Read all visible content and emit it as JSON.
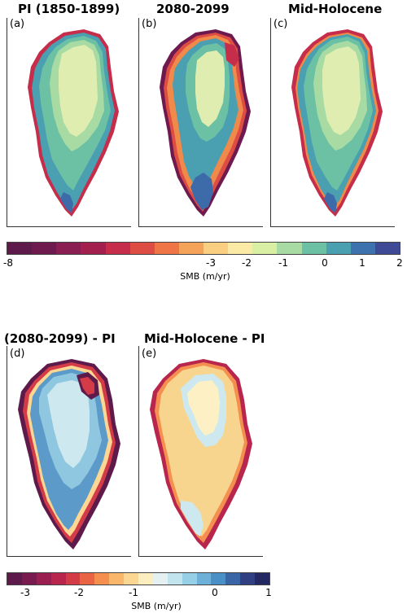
{
  "top_panels": [
    {
      "title": "PI (1850-1899)",
      "letter": "(a)"
    },
    {
      "title": "2080-2099",
      "letter": "(b)"
    },
    {
      "title": "Mid-Holocene",
      "letter": "(c)"
    }
  ],
  "bottom_panels": [
    {
      "title": "(2080-2099) - PI",
      "letter": "(d)"
    },
    {
      "title": "Mid-Holocene - PI",
      "letter": "(e)"
    }
  ],
  "colorbar_top": {
    "label": "SMB (m/yr)",
    "ticks": [
      "-8",
      "-3",
      "-2",
      "-1",
      "0",
      "1",
      "2"
    ],
    "colors": [
      "#5e1a4b",
      "#6e1a4f",
      "#8a1d52",
      "#a31f4e",
      "#c52d4a",
      "#dd4d43",
      "#ef7546",
      "#f6a35a",
      "#fbcf82",
      "#fbeaa6",
      "#d8efa4",
      "#a7dba3",
      "#6cc1a4",
      "#4a9fb0",
      "#3d72ae",
      "#3f4a96"
    ]
  },
  "colorbar_bottom": {
    "label": "SMB (m/yr)",
    "ticks": [
      "-3",
      "-2",
      "-1",
      "0",
      "1"
    ],
    "colors": [
      "#5e1a4b",
      "#7a1b50",
      "#9a1e50",
      "#b9264d",
      "#d33c47",
      "#e86445",
      "#f58f4f",
      "#fab76b",
      "#fcd693",
      "#fdeec0",
      "#e4f1f0",
      "#c2e4ee",
      "#96cfe6",
      "#6db1d8",
      "#4b8fc7",
      "#3a66a8",
      "#2f3f82",
      "#232862"
    ]
  },
  "map_colors": {
    "interior_light": "#dfeeb0",
    "mid_green": "#a8dba3",
    "teal": "#6cc1a4",
    "blue_teal": "#4a9fb0",
    "deep_blue": "#3d6aa8",
    "edge_red": "#c52d4a",
    "edge_purple": "#6e1a4f",
    "edge_orange": "#f08a4a",
    "diff_light_blue": "#cde9ef",
    "diff_blue": "#8fc7e0",
    "diff_darker_blue": "#5b9ac9",
    "diff_tan": "#f8d58f",
    "diff_pale": "#fdf0c4"
  }
}
